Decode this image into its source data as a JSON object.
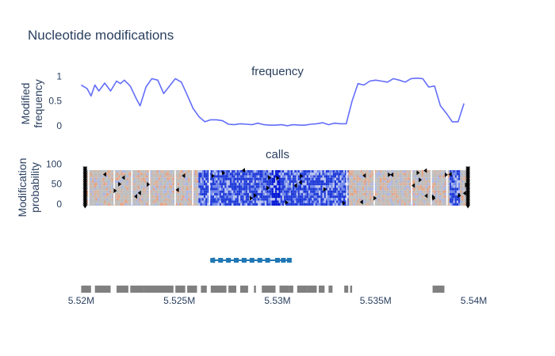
{
  "title": "Nucleotide modifications",
  "colors": {
    "frequency_line": "#636efa",
    "unmodified": "#bdbdbd",
    "modified_low": "#e8a07f",
    "modified_high": "#0014d4",
    "gene": "#1f77b4",
    "feature": "#808080",
    "text": "#2a3f5f"
  },
  "chart_data": [
    {
      "type": "line",
      "subplot_title": "frequency",
      "ylabel": "Modified frequency",
      "ylabel_lines": [
        "Modified",
        "frequency"
      ],
      "ylim": [
        -0.05,
        1.1
      ],
      "yticks": [
        0,
        0.5,
        1
      ],
      "ytick_labels": [
        "0",
        "0.5",
        "1"
      ],
      "grid": false,
      "series": [
        {
          "x": [
            5.52,
            5.5203,
            5.5205,
            5.5207,
            5.5209,
            5.5212,
            5.5215,
            5.5218,
            5.522,
            5.5222,
            5.5225,
            5.5228,
            5.523,
            5.5233,
            5.5236,
            5.5239,
            5.5242,
            5.5245,
            5.5248,
            5.5251,
            5.5254,
            5.5257,
            5.526,
            5.5263,
            5.5266,
            5.5269,
            5.5272,
            5.5275,
            5.5278,
            5.5281,
            5.5284,
            5.5287,
            5.529,
            5.5293,
            5.5296,
            5.5299,
            5.5302,
            5.5305,
            5.5308,
            5.5311,
            5.5314,
            5.5317,
            5.532,
            5.5323,
            5.5326,
            5.5329,
            5.5332,
            5.5335,
            5.5338,
            5.5341,
            5.5344,
            5.5347,
            5.535,
            5.5353,
            5.5356,
            5.5359,
            5.5362,
            5.5365,
            5.5368,
            5.5371,
            5.5374,
            5.5377,
            5.538,
            5.5383,
            5.5386,
            5.5389,
            5.5392,
            5.5395
          ],
          "values": [
            0.82,
            0.75,
            0.6,
            0.82,
            0.7,
            0.86,
            0.7,
            0.9,
            0.85,
            0.92,
            0.8,
            0.55,
            0.4,
            0.78,
            0.95,
            0.92,
            0.65,
            0.8,
            0.95,
            0.88,
            0.62,
            0.35,
            0.18,
            0.08,
            0.12,
            0.12,
            0.1,
            0.03,
            0.02,
            0.04,
            0.03,
            0.02,
            0.05,
            0.02,
            0.01,
            0.01,
            0.02,
            0.0,
            0.02,
            0.01,
            0.01,
            0.03,
            0.04,
            0.06,
            0.02,
            0.05,
            0.04,
            0.04,
            0.5,
            0.85,
            0.82,
            0.9,
            0.92,
            0.9,
            0.88,
            0.95,
            0.92,
            0.88,
            0.95,
            0.96,
            0.95,
            0.78,
            0.8,
            0.4,
            0.25,
            0.08,
            0.08,
            0.45
          ]
        }
      ]
    },
    {
      "type": "heatmap",
      "subplot_title": "calls",
      "ylabel": "Modification probability",
      "ylabel_lines": [
        "Modification",
        "probability"
      ],
      "ylim": [
        -8,
        105
      ],
      "yticks": [
        0,
        50,
        100
      ],
      "ytick_labels": [
        "0",
        "50",
        "100"
      ]
    },
    {
      "type": "scatter",
      "description_track": "gene",
      "x_range": [
        5.5267,
        5.5306
      ],
      "markers_x": [
        5.5267,
        5.5271,
        5.5275,
        5.5279,
        5.5283,
        5.5287,
        5.5291,
        5.5295,
        5.53,
        5.5303,
        5.5306
      ]
    },
    {
      "type": "bar",
      "description_track": "features",
      "segments": [
        [
          5.52,
          5.5205
        ],
        [
          5.5207,
          5.5215
        ],
        [
          5.5218,
          5.5224
        ],
        [
          5.5225,
          5.5232
        ],
        [
          5.5232,
          5.5238
        ],
        [
          5.5238,
          5.5247
        ],
        [
          5.5248,
          5.5253
        ],
        [
          5.5254,
          5.5259
        ],
        [
          5.5261,
          5.5264
        ],
        [
          5.5266,
          5.5274
        ],
        [
          5.5275,
          5.5279
        ],
        [
          5.5281,
          5.5285
        ],
        [
          5.5288,
          5.5289
        ],
        [
          5.5292,
          5.5299
        ],
        [
          5.5301,
          5.5306
        ],
        [
          5.5306,
          5.5308
        ],
        [
          5.531,
          5.5315
        ],
        [
          5.5315,
          5.532
        ],
        [
          5.5321,
          5.5324
        ],
        [
          5.5326,
          5.5328
        ],
        [
          5.5334,
          5.5336
        ],
        [
          5.5337,
          5.5338
        ],
        [
          5.5379,
          5.5385
        ]
      ],
      "xlim": [
        5.5195,
        5.5405
      ],
      "xticks": [
        5.52,
        5.525,
        5.53,
        5.535,
        5.54
      ],
      "xtick_labels": [
        "5.52M",
        "5.525M",
        "5.53M",
        "5.535M",
        "5.54M"
      ]
    }
  ]
}
